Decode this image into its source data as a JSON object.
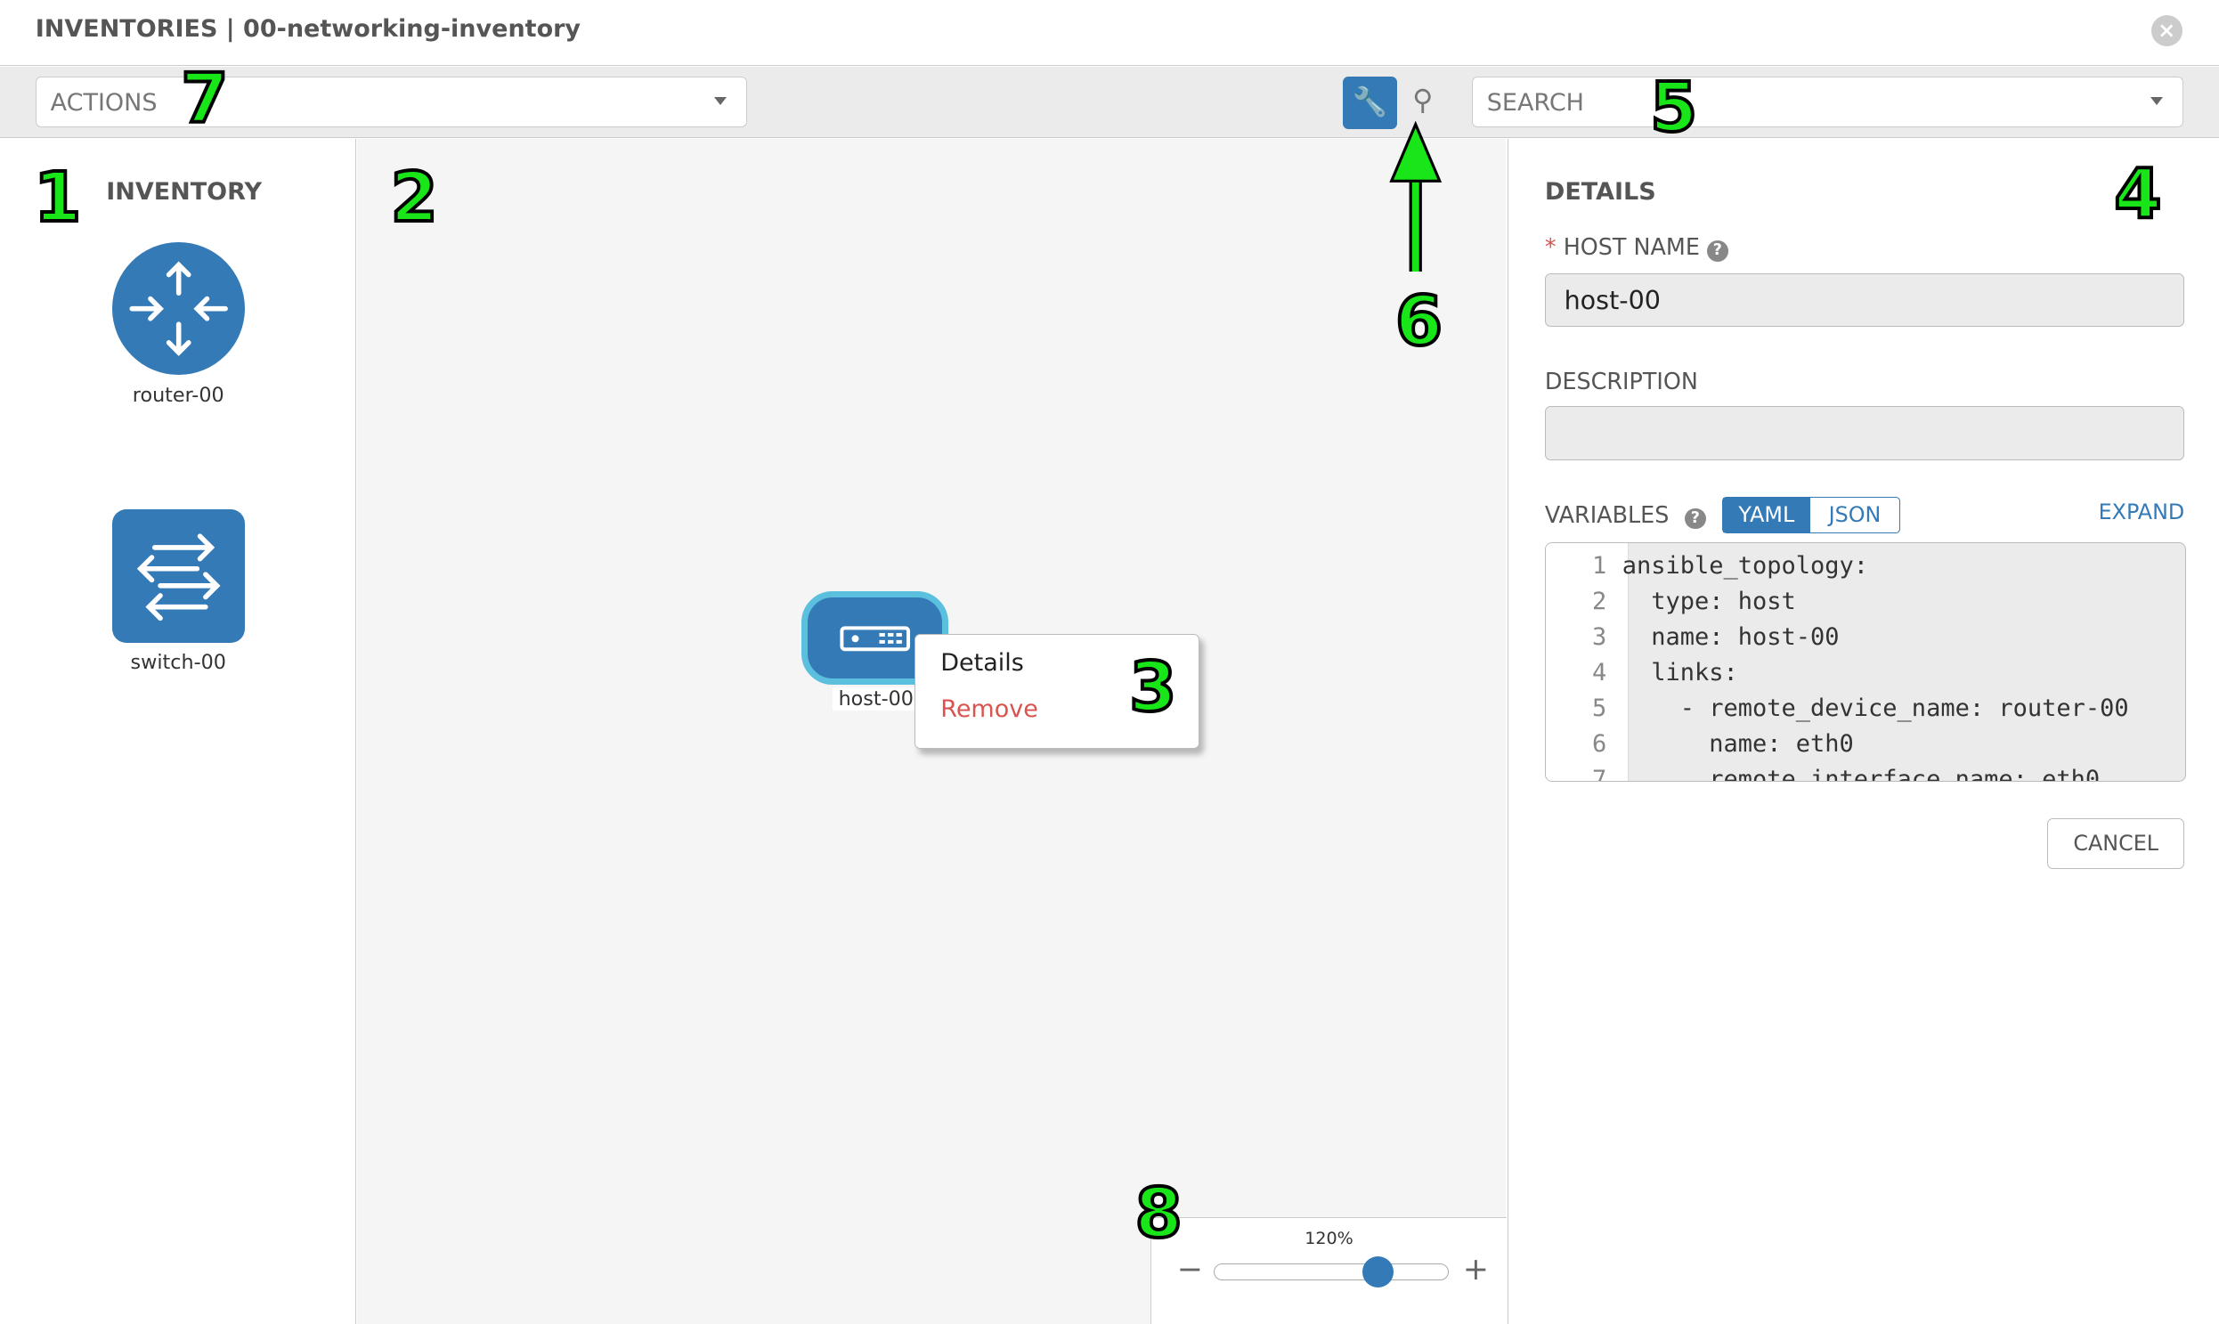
{
  "header": {
    "title": "INVENTORIES | 00-networking-inventory",
    "close_icon": "close-circle-icon"
  },
  "toolbar": {
    "actions_placeholder": "ACTIONS",
    "search_placeholder": "SEARCH",
    "wrench_icon": "wrench-icon",
    "key_icon": "key-icon",
    "active_color": "#337ab7"
  },
  "inventory": {
    "title": "INVENTORY",
    "items": [
      {
        "label": "router-00",
        "icon": "router-icon"
      },
      {
        "label": "switch-00",
        "icon": "switch-icon"
      }
    ]
  },
  "canvas": {
    "node": {
      "label": "host-00",
      "icon": "server-icon"
    },
    "context_menu": {
      "items": [
        "Details",
        "Remove"
      ]
    },
    "zoom": {
      "label": "120%",
      "value_percent": 120
    }
  },
  "details": {
    "title": "DETAILS",
    "host_name_label": "HOST NAME",
    "required_mark": "*",
    "host_name_value": "host-00",
    "description_label": "DESCRIPTION",
    "description_value": "",
    "variables_label": "VARIABLES",
    "yaml": "YAML",
    "json": "JSON",
    "expand": "EXPAND",
    "cancel": "CANCEL",
    "code_lines": [
      {
        "n": "1",
        "text": "ansible_topology:"
      },
      {
        "n": "2",
        "text": "  type: host"
      },
      {
        "n": "3",
        "text": "  name: host-00"
      },
      {
        "n": "4",
        "text": "  links:"
      },
      {
        "n": "5",
        "text": "    - remote_device_name: router-00"
      },
      {
        "n": "6",
        "text": "      name: eth0"
      },
      {
        "n": "7",
        "text": "      remote_interface_name: eth0"
      }
    ]
  },
  "annotations": [
    "1",
    "2",
    "3",
    "4",
    "5",
    "6",
    "7",
    "8"
  ]
}
